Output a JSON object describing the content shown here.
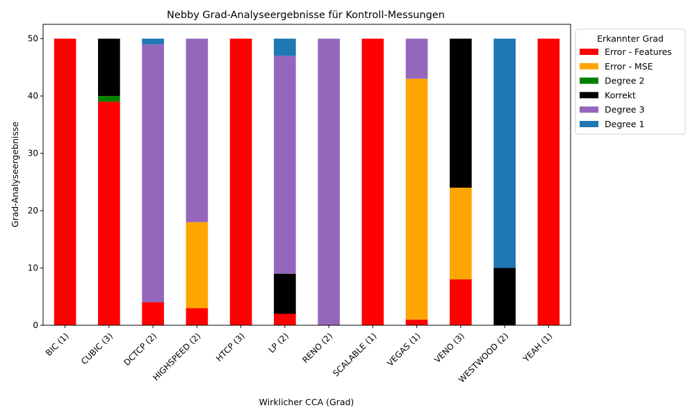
{
  "chart_data": {
    "type": "bar",
    "stacked": true,
    "title": "Nebby Grad-Analyseergebnisse für Kontroll-Messungen",
    "xlabel": "Wirklicher CCA (Grad)",
    "ylabel": "Grad-Analyseergebnisse",
    "ylim": [
      0,
      52.5
    ],
    "yticks": [
      0,
      10,
      20,
      30,
      40,
      50
    ],
    "grid": false,
    "legend_title": "Erkannter Grad",
    "legend_position": "outside-top-right",
    "categories": [
      "BIC (1)",
      "CUBIC (3)",
      "DCTCP (2)",
      "HIGHSPEED (2)",
      "HTCP (3)",
      "LP (2)",
      "RENO (2)",
      "SCALABLE (1)",
      "VEGAS (1)",
      "VENO (3)",
      "WESTWOOD (2)",
      "YEAH (1)"
    ],
    "series": [
      {
        "name": "Error - Features",
        "color": "#ff0000",
        "values": [
          50,
          39,
          4,
          3,
          50,
          2,
          0,
          50,
          1,
          8,
          0,
          50
        ]
      },
      {
        "name": "Error - MSE",
        "color": "#ffa500",
        "values": [
          0,
          0,
          0,
          15,
          0,
          0,
          0,
          0,
          42,
          16,
          0,
          0
        ]
      },
      {
        "name": "Degree 2",
        "color": "#008000",
        "values": [
          0,
          1,
          0,
          0,
          0,
          0,
          0,
          0,
          0,
          0,
          0,
          0
        ]
      },
      {
        "name": "Korrekt",
        "color": "#000000",
        "values": [
          0,
          10,
          0,
          0,
          0,
          7,
          0,
          0,
          0,
          26,
          10,
          0
        ]
      },
      {
        "name": "Degree 3",
        "color": "#9467bd",
        "values": [
          0,
          0,
          45,
          32,
          0,
          38,
          50,
          0,
          7,
          0,
          0,
          0
        ]
      },
      {
        "name": "Degree 1",
        "color": "#1f77b4",
        "values": [
          0,
          0,
          1,
          0,
          0,
          3,
          0,
          0,
          0,
          0,
          40,
          0
        ]
      }
    ]
  }
}
